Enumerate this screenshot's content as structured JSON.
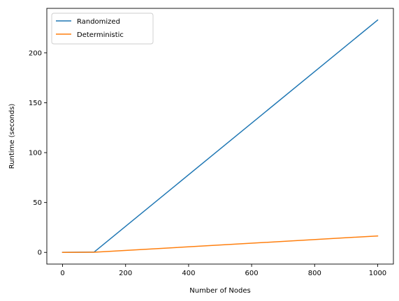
{
  "chart_data": {
    "type": "line",
    "title": "",
    "xlabel": "Number of Nodes",
    "ylabel": "Runtime (seconds)",
    "xlim": [
      -50,
      1050
    ],
    "ylim": [
      -11.7,
      244.6
    ],
    "x_ticks": [
      0,
      200,
      400,
      600,
      800,
      1000
    ],
    "y_ticks": [
      0,
      50,
      100,
      150,
      200
    ],
    "x": [
      0,
      100,
      1000
    ],
    "series": [
      {
        "name": "Randomized",
        "values": [
          0.05,
          0.3,
          232.9
        ],
        "color": "#1f77b4"
      },
      {
        "name": "Deterministic",
        "values": [
          0.02,
          0.15,
          16.5
        ],
        "color": "#ff7f0e"
      }
    ],
    "legend": "upper-left",
    "grid": false
  }
}
